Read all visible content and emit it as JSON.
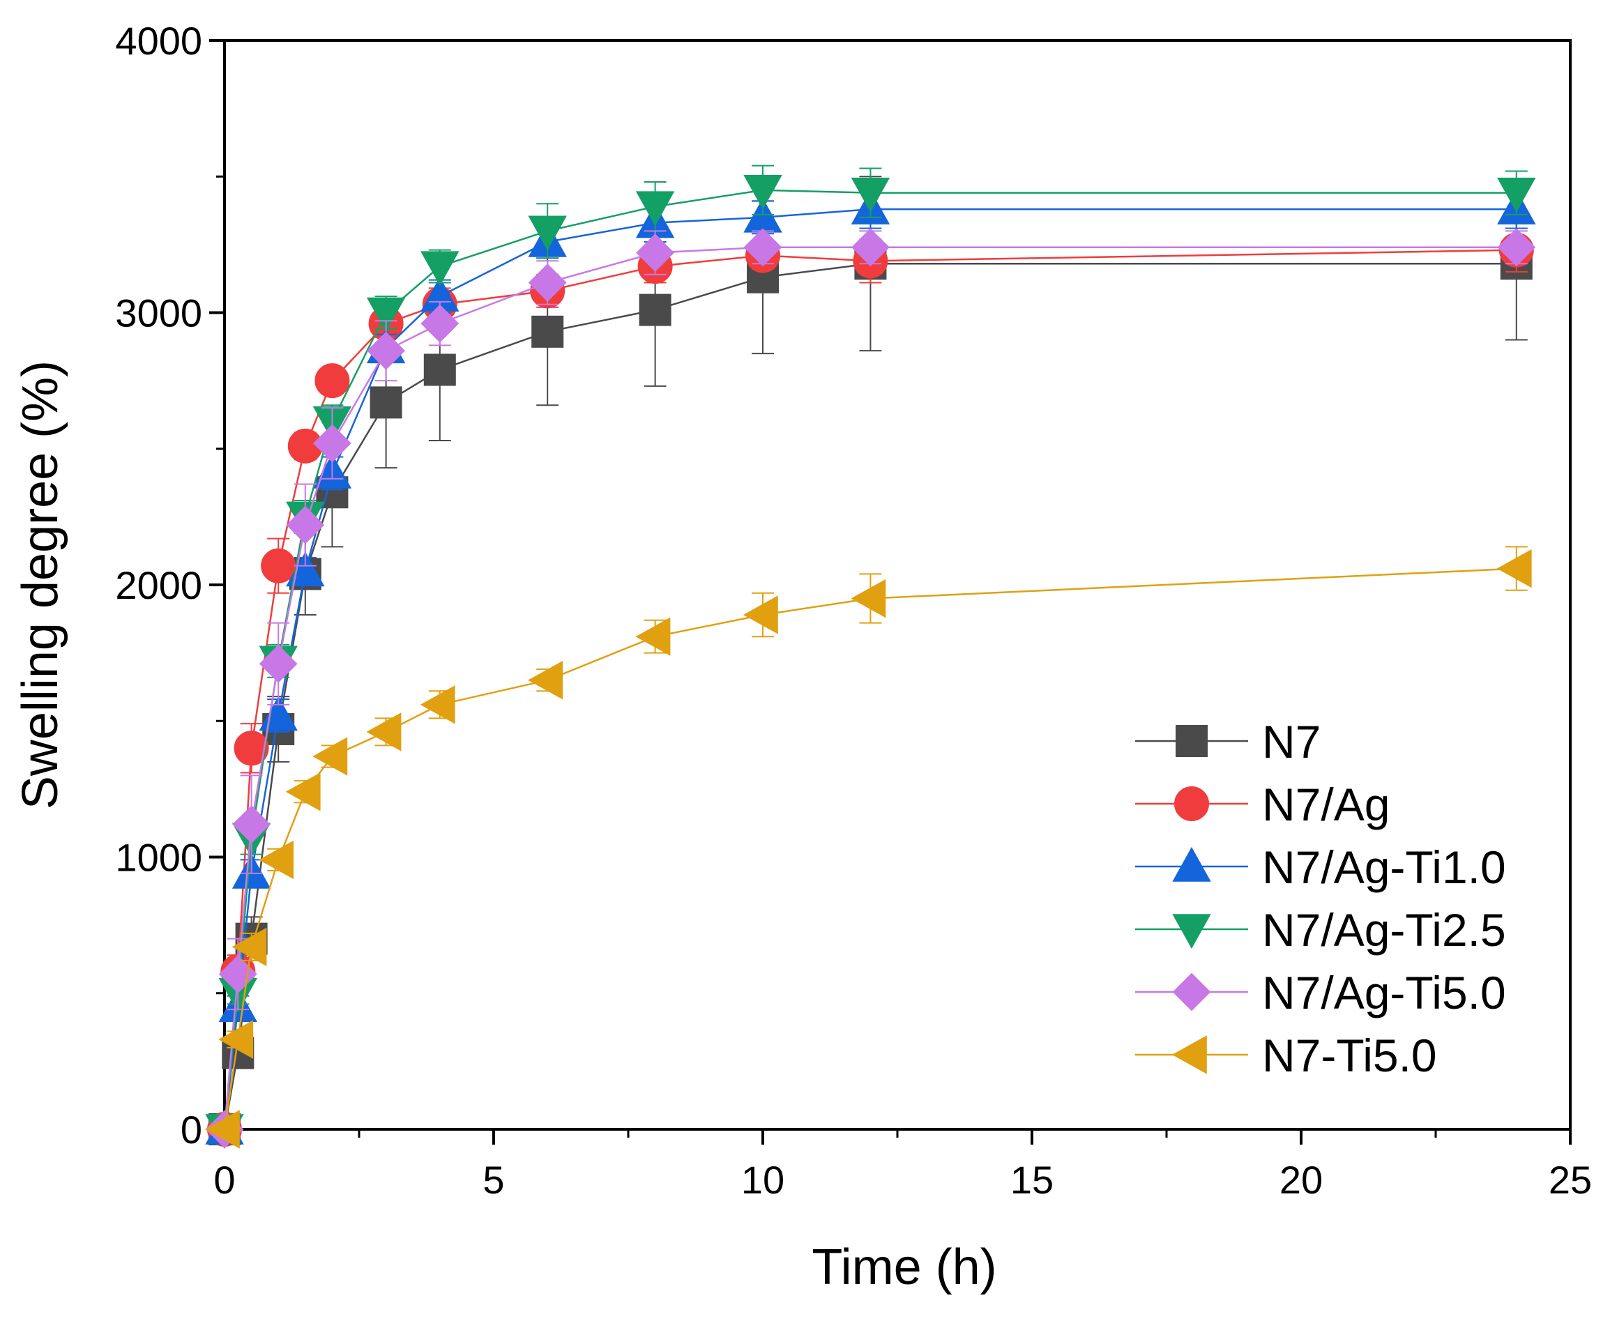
{
  "chart_data": {
    "type": "line",
    "xlabel": "Time (h)",
    "ylabel": "Swelling degree (%)",
    "xlim": [
      0,
      25
    ],
    "ylim": [
      0,
      4000
    ],
    "xticks": [
      0,
      5,
      10,
      15,
      20,
      25
    ],
    "xtick_labels": [
      "0",
      "5",
      "10",
      "15",
      "20",
      "25"
    ],
    "yticks": [
      0,
      1000,
      2000,
      3000,
      4000
    ],
    "ytick_labels": [
      "0",
      "1000",
      "2000",
      "3000",
      "4000"
    ],
    "legend_position": "lower-right",
    "series": [
      {
        "name": "N7",
        "color": "#4a4a4a",
        "marker": "square",
        "x": [
          0,
          0.25,
          0.5,
          1,
          1.5,
          2,
          3,
          4,
          6,
          8,
          10,
          12,
          24
        ],
        "y": [
          0,
          280,
          700,
          1470,
          2040,
          2340,
          2670,
          2790,
          2930,
          3010,
          3130,
          3180,
          3180
        ],
        "err": [
          0,
          40,
          80,
          120,
          150,
          200,
          240,
          260,
          270,
          280,
          280,
          320,
          280
        ]
      },
      {
        "name": "N7/Ag",
        "color": "#f03c3c",
        "marker": "circle",
        "x": [
          0,
          0.25,
          0.5,
          1,
          1.5,
          2,
          3,
          4,
          6,
          8,
          10,
          12,
          24
        ],
        "y": [
          0,
          580,
          1400,
          2070,
          2510,
          2750,
          2960,
          3030,
          3080,
          3170,
          3210,
          3190,
          3230
        ],
        "err": [
          0,
          60,
          90,
          100,
          50,
          30,
          50,
          60,
          60,
          60,
          50,
          80,
          80
        ]
      },
      {
        "name": "N7/Ag-Ti1.0",
        "color": "#1464dc",
        "marker": "triangle-up",
        "x": [
          0,
          0.25,
          0.5,
          1,
          1.5,
          2,
          3,
          4,
          6,
          8,
          10,
          12,
          24
        ],
        "y": [
          0,
          450,
          940,
          1520,
          2050,
          2410,
          2870,
          3060,
          3260,
          3330,
          3350,
          3380,
          3380
        ],
        "err": [
          0,
          40,
          50,
          60,
          50,
          60,
          50,
          60,
          60,
          70,
          60,
          70,
          70
        ]
      },
      {
        "name": "N7/Ag-Ti2.5",
        "color": "#14a064",
        "marker": "triangle-down",
        "x": [
          0,
          0.25,
          0.5,
          1,
          1.5,
          2,
          3,
          4,
          6,
          8,
          10,
          12,
          24
        ],
        "y": [
          0,
          500,
          1070,
          1720,
          2250,
          2600,
          3000,
          3170,
          3300,
          3390,
          3450,
          3440,
          3440
        ],
        "err": [
          0,
          40,
          60,
          60,
          60,
          60,
          60,
          60,
          100,
          90,
          90,
          90,
          80
        ]
      },
      {
        "name": "N7/Ag-Ti5.0",
        "color": "#c878e6",
        "marker": "diamond",
        "x": [
          0,
          0.25,
          0.5,
          1,
          1.5,
          2,
          3,
          4,
          6,
          8,
          10,
          12,
          24
        ],
        "y": [
          0,
          570,
          1120,
          1710,
          2220,
          2520,
          2860,
          2960,
          3110,
          3220,
          3240,
          3240,
          3240
        ],
        "err": [
          0,
          130,
          180,
          150,
          150,
          130,
          110,
          80,
          80,
          80,
          60,
          60,
          60
        ]
      },
      {
        "name": "N7-Ti5.0",
        "color": "#e0a010",
        "marker": "triangle-left",
        "x": [
          0,
          0.25,
          0.5,
          1,
          1.5,
          2,
          3,
          4,
          6,
          8,
          10,
          12,
          24
        ],
        "y": [
          0,
          330,
          670,
          990,
          1240,
          1370,
          1460,
          1560,
          1650,
          1810,
          1890,
          1950,
          2060
        ],
        "err": [
          0,
          30,
          50,
          40,
          40,
          40,
          50,
          50,
          40,
          60,
          80,
          90,
          80
        ]
      }
    ]
  }
}
